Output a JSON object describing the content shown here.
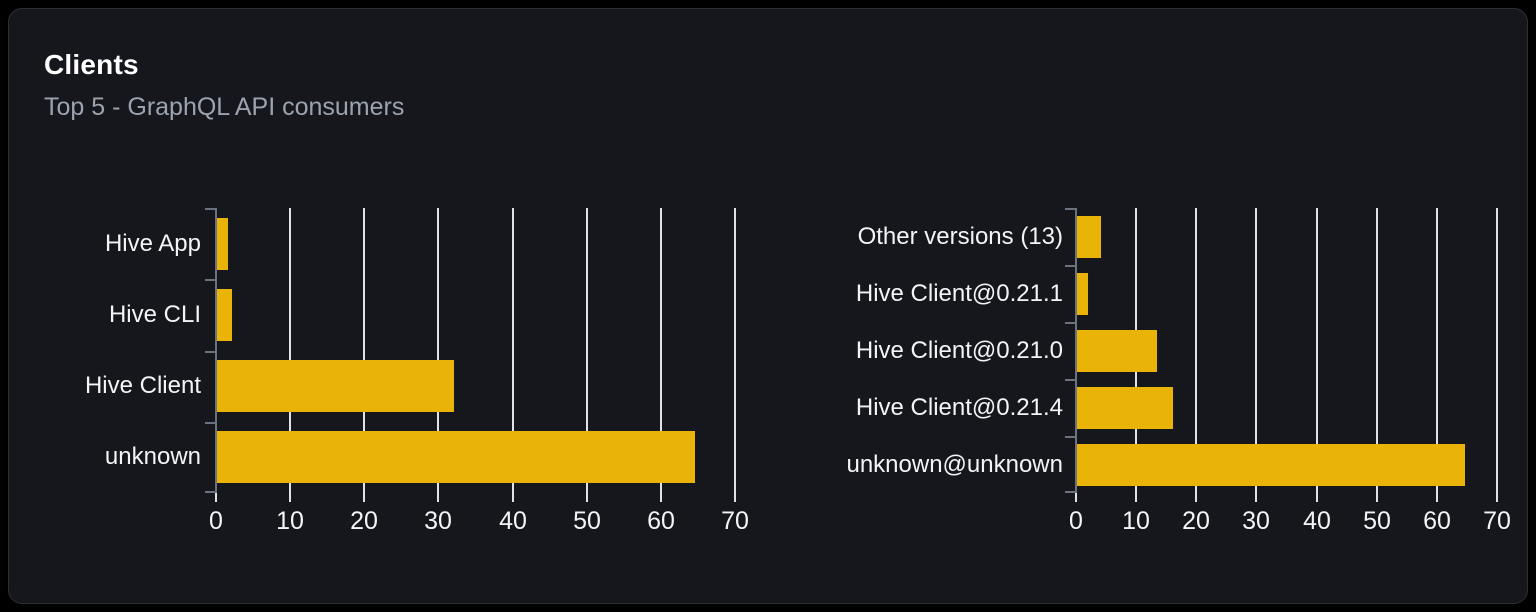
{
  "page": {
    "title": "Clients",
    "subtitle": "Top 5 - GraphQL API consumers"
  },
  "colors": {
    "page_bg": "#000000",
    "card_bg": "#15171c",
    "card_border": "#2c2f36",
    "bar": "#eab308",
    "gridline": "#dfe3e8",
    "axis": "#6b7280",
    "title_text": "#ffffff",
    "subtitle_text": "#9ca3af",
    "label_text": "#f3f4f6"
  },
  "chart_data": [
    {
      "type": "bar",
      "orientation": "horizontal",
      "name": "clients-by-name",
      "categories": [
        "Hive App",
        "Hive CLI",
        "Hive Client",
        "unknown"
      ],
      "values": [
        1.5,
        2,
        32,
        64.5
      ],
      "xlim": [
        0,
        70
      ],
      "xticks": [
        0,
        10,
        20,
        30,
        40,
        50,
        60,
        70
      ],
      "grid": true,
      "legend": false,
      "bar_color": "#eab308"
    },
    {
      "type": "bar",
      "orientation": "horizontal",
      "name": "clients-by-version",
      "categories": [
        "Other versions (13)",
        "Hive Client@0.21.1",
        "Hive Client@0.21.0",
        "Hive Client@0.21.4",
        "unknown@unknown"
      ],
      "values": [
        4,
        1.8,
        13.3,
        16,
        64.5
      ],
      "xlim": [
        0,
        70
      ],
      "xticks": [
        0,
        10,
        20,
        30,
        40,
        50,
        60,
        70
      ],
      "grid": true,
      "legend": false,
      "bar_color": "#eab308"
    }
  ]
}
